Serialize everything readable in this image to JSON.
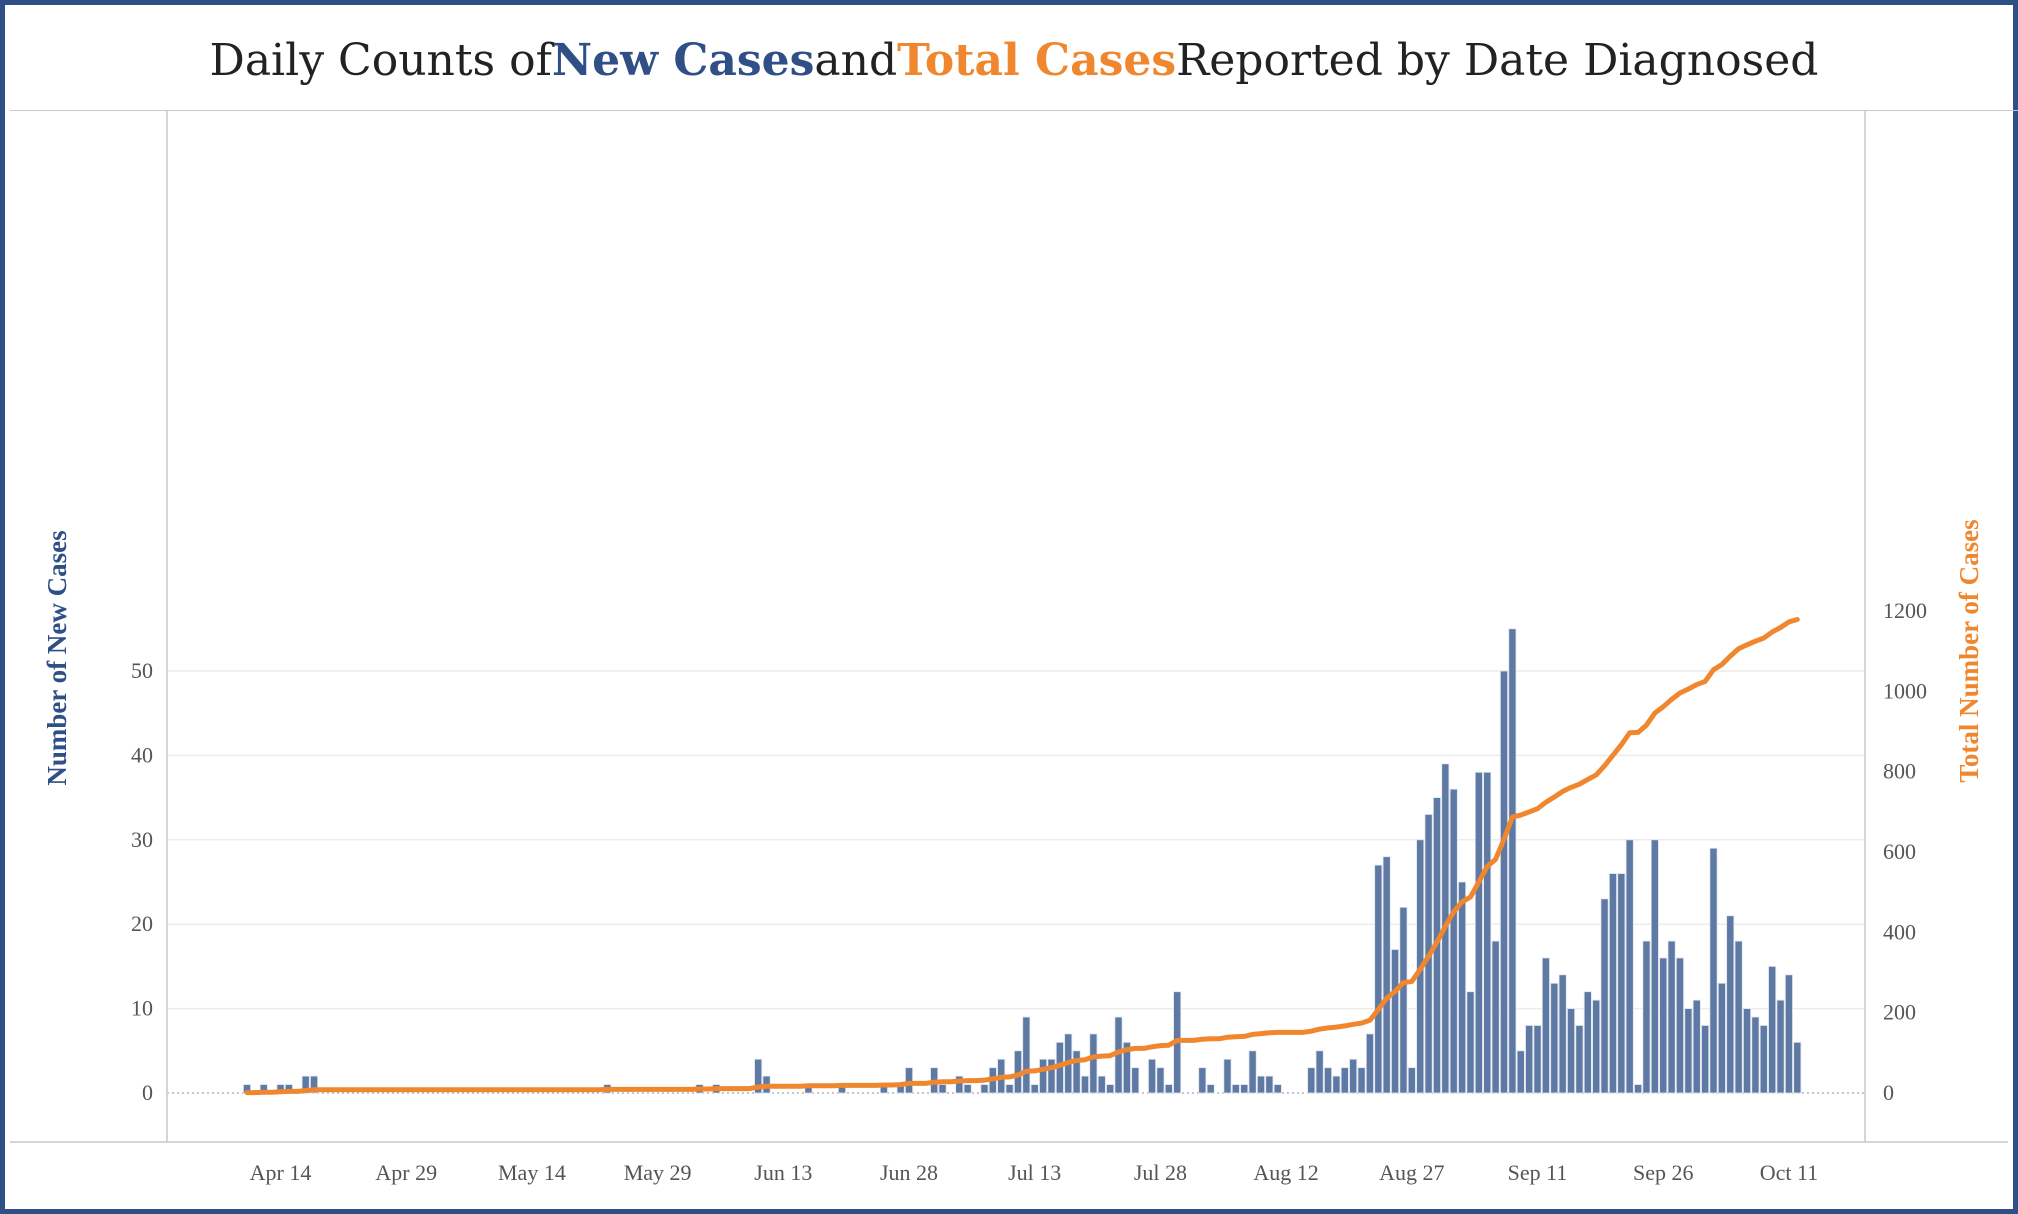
{
  "title": {
    "prefix": "Daily Counts of ",
    "new_label": "New Cases",
    "middle": " and ",
    "total_label": "Total Cases",
    "suffix": " Reported by Date Diagnosed"
  },
  "colors": {
    "bars": "#5e79a3",
    "line": "#f0872e",
    "new_text": "#2f4f86",
    "total_text": "#f0872e",
    "frame": "#2f4f86"
  },
  "chart_data": {
    "type": "bar+line",
    "x_start_date": "2020-04-10",
    "xlabel": "",
    "ylabel_left": "Number of New Cases",
    "ylabel_right": "Total Number of Cases",
    "y_left_range": [
      0,
      55
    ],
    "y_left_ticks": [
      0,
      10,
      20,
      30,
      40,
      50
    ],
    "y_right_range": [
      0,
      1200
    ],
    "y_right_ticks": [
      0,
      200,
      400,
      600,
      800,
      1000,
      1200
    ],
    "x_ticks": [
      "Apr 14",
      "Apr 29",
      "May 14",
      "May 29",
      "Jun 13",
      "Jun 28",
      "Jul 13",
      "Jul 28",
      "Aug 12",
      "Aug 27",
      "Sep 11",
      "Sep 26",
      "Oct 11"
    ],
    "grid": true,
    "new_cases": [
      1,
      0,
      1,
      0,
      1,
      1,
      0,
      2,
      2,
      0,
      0,
      0,
      0,
      0,
      0,
      0,
      0,
      0,
      0,
      0,
      0,
      0,
      0,
      0,
      0,
      0,
      0,
      0,
      0,
      0,
      0,
      0,
      0,
      0,
      0,
      0,
      0,
      0,
      0,
      0,
      0,
      0,
      0,
      1,
      0,
      0,
      0,
      0,
      0,
      0,
      0,
      0,
      0,
      0,
      1,
      0,
      1,
      0,
      0,
      0,
      0,
      4,
      2,
      0,
      0,
      0,
      0,
      1,
      0,
      0,
      0,
      1,
      0,
      0,
      0,
      0,
      1,
      0,
      1,
      3,
      0,
      0,
      3,
      1,
      0,
      2,
      1,
      0,
      1,
      3,
      4,
      1,
      5,
      9,
      1,
      4,
      4,
      6,
      7,
      5,
      2,
      7,
      2,
      1,
      9,
      6,
      3,
      0,
      4,
      3,
      1,
      12,
      0,
      0,
      3,
      1,
      0,
      4,
      1,
      1,
      5,
      2,
      2,
      1,
      0,
      0,
      0,
      3,
      5,
      3,
      2,
      3,
      4,
      3,
      7,
      27,
      28,
      17,
      22,
      3,
      30,
      33,
      35,
      39,
      36,
      25,
      12,
      38,
      38,
      18,
      50,
      55,
      5,
      8,
      8,
      16,
      13,
      14,
      10,
      8,
      12,
      11,
      23,
      26,
      26,
      30,
      1,
      18,
      30,
      16,
      18,
      16,
      10,
      11,
      8,
      29,
      13,
      21,
      18,
      10,
      9,
      8,
      15,
      11,
      14,
      6
    ],
    "total_cases": [
      1,
      1,
      2,
      2,
      3,
      4,
      4,
      6,
      8,
      8,
      8,
      8,
      8,
      8,
      8,
      8,
      8,
      8,
      8,
      8,
      8,
      8,
      8,
      8,
      8,
      8,
      8,
      8,
      8,
      8,
      8,
      8,
      8,
      8,
      8,
      8,
      8,
      8,
      8,
      8,
      8,
      8,
      8,
      9,
      9,
      9,
      9,
      9,
      9,
      9,
      9,
      9,
      9,
      9,
      10,
      10,
      11,
      11,
      11,
      11,
      11,
      15,
      17,
      17,
      17,
      17,
      17,
      18,
      18,
      18,
      18,
      19,
      19,
      19,
      19,
      19,
      20,
      20,
      21,
      24,
      24,
      24,
      27,
      28,
      28,
      30,
      31,
      31,
      32,
      35,
      39,
      40,
      45,
      54,
      55,
      59,
      63,
      69,
      76,
      81,
      83,
      90,
      92,
      93,
      102,
      108,
      111,
      111,
      115,
      118,
      119,
      131,
      131,
      131,
      134,
      135,
      135,
      139,
      140,
      141,
      146,
      148,
      150,
      151,
      151,
      151,
      151,
      154,
      159,
      162,
      164,
      167,
      171,
      174,
      181,
      208,
      236,
      253,
      275,
      278,
      308,
      341,
      376,
      415,
      451,
      476,
      488,
      526,
      564,
      582,
      632,
      687,
      692,
      700,
      708,
      724,
      737,
      751,
      761,
      769,
      781,
      792,
      815,
      841,
      867,
      897,
      898,
      916,
      946,
      962,
      980,
      996,
      1006,
      1017,
      1025,
      1054,
      1067,
      1088,
      1106,
      1116,
      1125,
      1133,
      1148,
      1159,
      1173,
      1179
    ]
  }
}
